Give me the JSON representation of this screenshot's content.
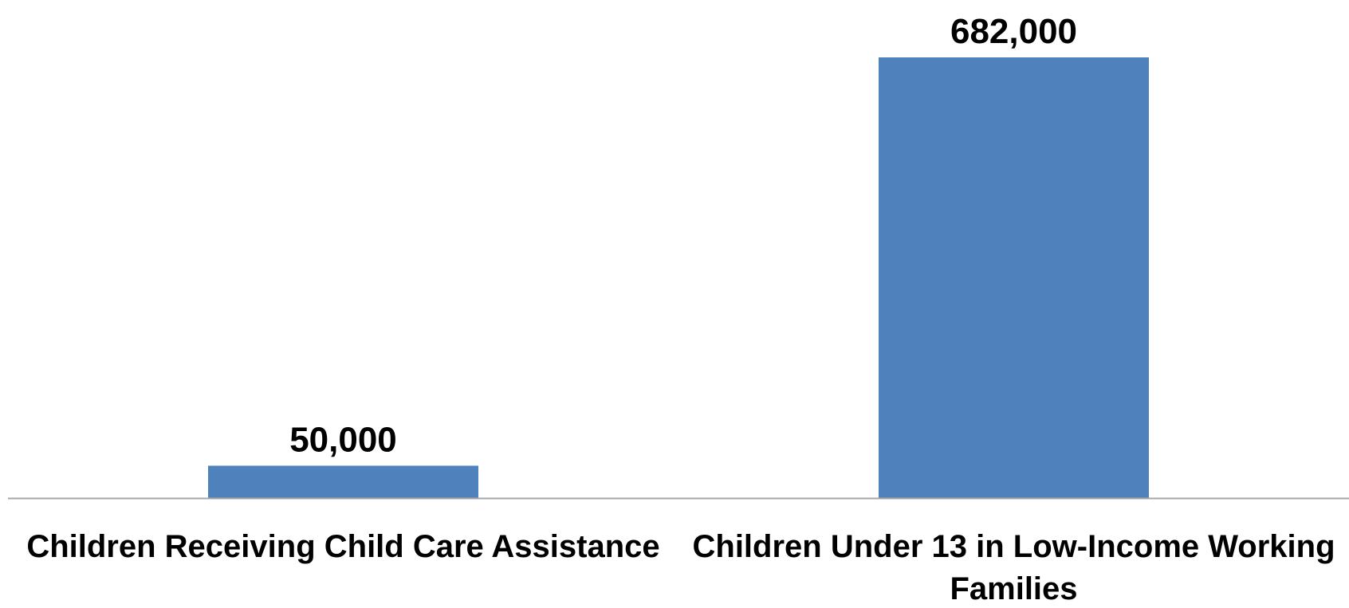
{
  "chart_data": {
    "type": "bar",
    "categories": [
      [
        "Children Receiving Child Care Assistance"
      ],
      [
        "Children Under 13 in Low-Income Working",
        "Families"
      ]
    ],
    "values": [
      50000,
      682000
    ],
    "data_labels": [
      "50,000",
      "682,000"
    ],
    "title": "",
    "xlabel": "",
    "ylabel": "",
    "ylim": [
      0,
      682000
    ],
    "grid": false,
    "legend": "none",
    "bar_color": "#4f81bd",
    "axis_color": "#a6a6a6"
  }
}
